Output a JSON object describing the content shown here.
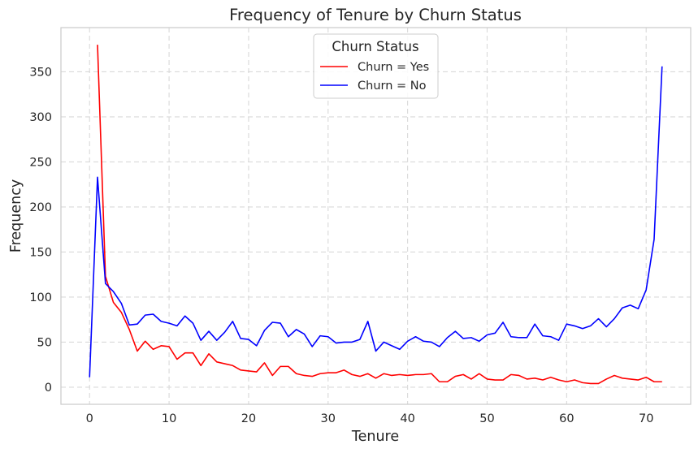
{
  "chart_data": {
    "type": "line",
    "title": "Frequency of Tenure by Churn Status",
    "xlabel": "Tenure",
    "ylabel": "Frequency",
    "xlim": [
      -3.6,
      75.6
    ],
    "ylim": [
      -19,
      399
    ],
    "xticks": [
      0,
      10,
      20,
      30,
      40,
      50,
      60,
      70
    ],
    "yticks": [
      0,
      50,
      100,
      150,
      200,
      250,
      300,
      350
    ],
    "grid": true,
    "grid_style": "dashed",
    "legend": {
      "title": "Churn Status",
      "position": "upper center"
    },
    "series": [
      {
        "name": "Churn = Yes",
        "color": "#ff0000",
        "x": [
          1,
          2,
          3,
          4,
          5,
          6,
          7,
          8,
          9,
          10,
          11,
          12,
          13,
          14,
          15,
          16,
          17,
          18,
          19,
          20,
          21,
          22,
          23,
          24,
          25,
          26,
          27,
          28,
          29,
          30,
          31,
          32,
          33,
          34,
          35,
          36,
          37,
          38,
          39,
          40,
          41,
          42,
          43,
          44,
          45,
          46,
          47,
          48,
          49,
          50,
          51,
          52,
          53,
          54,
          55,
          56,
          57,
          58,
          59,
          60,
          61,
          62,
          63,
          64,
          65,
          66,
          67,
          68,
          69,
          70,
          71,
          72
        ],
        "values": [
          380,
          123,
          94,
          83,
          64,
          40,
          51,
          42,
          46,
          45,
          31,
          38,
          38,
          24,
          37,
          28,
          26,
          24,
          19,
          18,
          17,
          27,
          13,
          23,
          23,
          15,
          13,
          12,
          15,
          16,
          16,
          19,
          14,
          12,
          15,
          10,
          15,
          13,
          14,
          13,
          14,
          14,
          15,
          6,
          6,
          12,
          14,
          9,
          15,
          9,
          8,
          8,
          14,
          13,
          9,
          10,
          8,
          11,
          8,
          6,
          8,
          5,
          4,
          4,
          9,
          13,
          10,
          9,
          8,
          11,
          6,
          6
        ]
      },
      {
        "name": "Churn = No",
        "color": "#0000ff",
        "x": [
          0,
          1,
          2,
          3,
          4,
          5,
          6,
          7,
          8,
          9,
          10,
          11,
          12,
          13,
          14,
          15,
          16,
          17,
          18,
          19,
          20,
          21,
          22,
          23,
          24,
          25,
          26,
          27,
          28,
          29,
          30,
          31,
          32,
          33,
          34,
          35,
          36,
          37,
          38,
          39,
          40,
          41,
          42,
          43,
          44,
          45,
          46,
          47,
          48,
          49,
          50,
          51,
          52,
          53,
          54,
          55,
          56,
          57,
          58,
          59,
          60,
          61,
          62,
          63,
          64,
          65,
          66,
          67,
          68,
          69,
          70,
          71,
          72
        ],
        "values": [
          11,
          233,
          115,
          106,
          93,
          69,
          70,
          80,
          81,
          73,
          71,
          68,
          79,
          71,
          52,
          62,
          52,
          61,
          73,
          54,
          53,
          46,
          63,
          72,
          71,
          56,
          64,
          59,
          45,
          57,
          56,
          49,
          50,
          50,
          53,
          73,
          40,
          50,
          46,
          42,
          51,
          56,
          51,
          50,
          45,
          55,
          62,
          54,
          55,
          51,
          58,
          60,
          72,
          56,
          55,
          55,
          70,
          57,
          56,
          52,
          70,
          68,
          65,
          68,
          76,
          67,
          76,
          88,
          91,
          87,
          108,
          164,
          356
        ]
      }
    ]
  }
}
